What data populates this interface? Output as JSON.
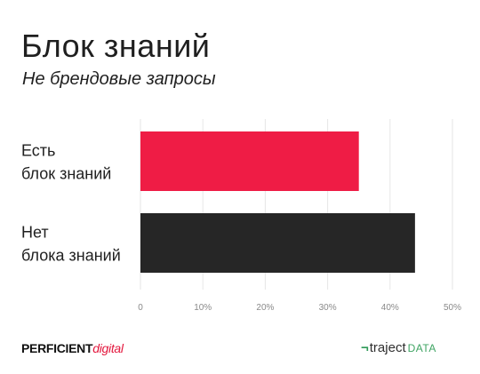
{
  "title": "Блок знаний",
  "subtitle": "Не брендовые запросы",
  "chart_data": {
    "type": "bar",
    "orientation": "horizontal",
    "categories": [
      [
        "Есть",
        "блок знаний"
      ],
      [
        "Нет",
        "блока знаний"
      ]
    ],
    "values": [
      35,
      44
    ],
    "colors": [
      "#ef1c45",
      "#262626"
    ],
    "xlim": [
      0,
      50
    ],
    "ticks": [
      0,
      10,
      20,
      30,
      40,
      50
    ],
    "tick_labels": [
      "0",
      "10%",
      "20%",
      "30%",
      "40%",
      "50%"
    ],
    "grid": true
  },
  "footer": {
    "left_brand": "PERFICIENT",
    "left_sub": "digital",
    "right_mark": "¬",
    "right_brand": "traject",
    "right_sub": "DATA"
  }
}
